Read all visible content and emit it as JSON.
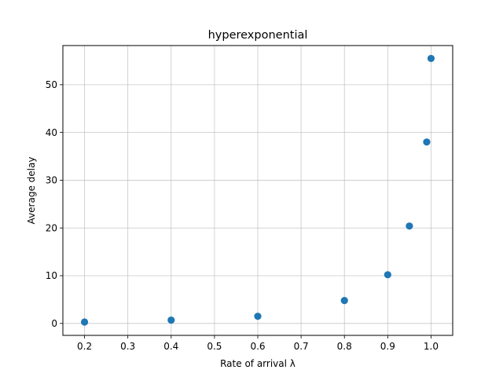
{
  "chart_data": {
    "type": "scatter",
    "title": "hyperexponential",
    "xlabel": "Rate of arrival λ",
    "ylabel": "Average delay",
    "grid": true,
    "xlim": [
      0.15,
      1.05
    ],
    "ylim": [
      -2.5,
      58.2
    ],
    "xticks": [
      0.2,
      0.3,
      0.4,
      0.5,
      0.6,
      0.7,
      0.8,
      0.9,
      1.0
    ],
    "xtick_labels": [
      "0.2",
      "0.3",
      "0.4",
      "0.5",
      "0.6",
      "0.7",
      "0.8",
      "0.9",
      "1.0"
    ],
    "yticks": [
      0,
      10,
      20,
      30,
      40,
      50
    ],
    "ytick_labels": [
      "0",
      "10",
      "20",
      "30",
      "40",
      "50"
    ],
    "series": [
      {
        "color": "#1f77b4",
        "x": [
          0.2,
          0.4,
          0.6,
          0.8,
          0.9,
          0.95,
          0.99,
          1.0
        ],
        "y": [
          0.3,
          0.7,
          1.5,
          4.8,
          10.2,
          20.4,
          38.0,
          55.5
        ]
      }
    ]
  }
}
